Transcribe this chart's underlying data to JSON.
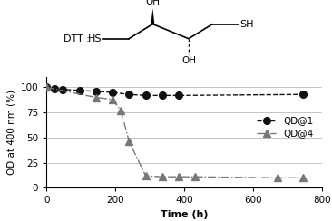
{
  "qd1_x": [
    0,
    24,
    48,
    96,
    144,
    192,
    240,
    288,
    336,
    384,
    744
  ],
  "qd1_y": [
    100,
    99,
    98,
    97,
    96,
    95,
    93,
    92,
    92,
    92,
    93
  ],
  "qd4_x": [
    0,
    144,
    192,
    216,
    240,
    288,
    336,
    384,
    432,
    672,
    744
  ],
  "qd4_y": [
    100,
    90,
    88,
    77,
    46,
    12,
    11,
    11,
    11,
    10,
    10
  ],
  "qd1_color": "#111111",
  "qd4_color": "#777777",
  "xlabel": "Time (h)",
  "ylabel": "OD at 400 nm (%)",
  "xlim": [
    0,
    800
  ],
  "ylim": [
    0,
    110
  ],
  "yticks": [
    0,
    25,
    50,
    75,
    100
  ],
  "xticks": [
    0,
    200,
    400,
    600,
    800
  ],
  "legend_qd1": "QD@1",
  "legend_qd4": "QD@4",
  "background_color": "#ffffff",
  "grid_color": "#bbbbbb",
  "dtt_label": "DTT :"
}
